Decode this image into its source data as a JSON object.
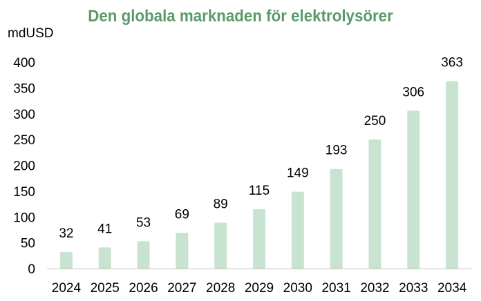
{
  "chart_data": {
    "type": "bar",
    "title": "Den globala marknaden för elektrolysörer",
    "ylabel": "mdUSD",
    "xlabel": "",
    "categories": [
      "2024",
      "2025",
      "2026",
      "2027",
      "2028",
      "2029",
      "2030",
      "2031",
      "2032",
      "2033",
      "2034"
    ],
    "values": [
      32,
      41,
      53,
      69,
      89,
      115,
      149,
      193,
      250,
      306,
      363
    ],
    "ylim": [
      0,
      400
    ],
    "yticks": [
      0,
      50,
      100,
      150,
      200,
      250,
      300,
      350,
      400
    ],
    "grid": false,
    "legend": "none",
    "data_labels": true,
    "colors": {
      "bar": "#c8e3cf",
      "title": "#5a9a6a",
      "axis": "#bfbfbf",
      "text": "#000000"
    }
  }
}
